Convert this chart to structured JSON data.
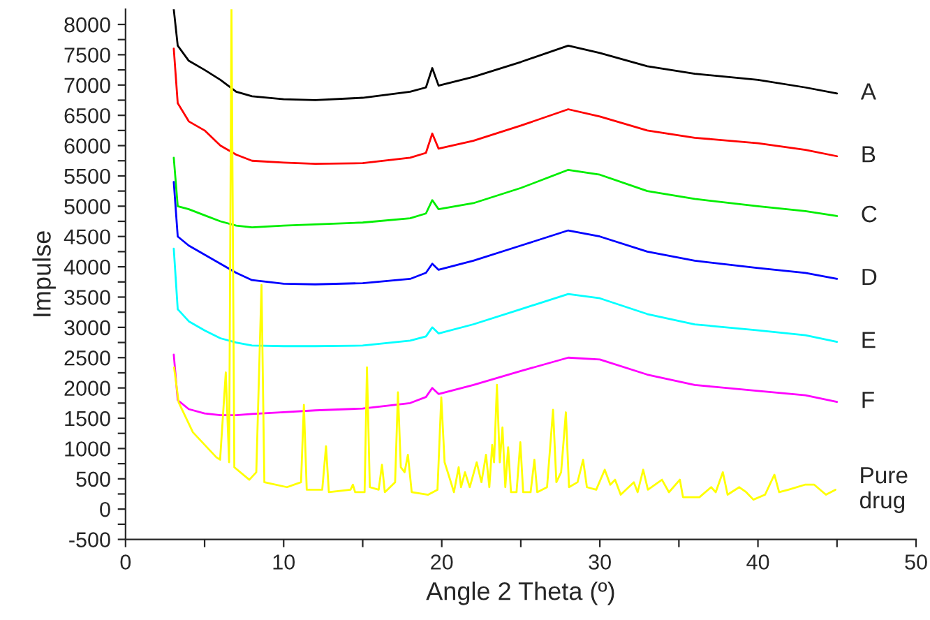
{
  "chart_data": {
    "type": "line",
    "xlabel": "Angle 2 Theta (º)",
    "ylabel": "Impulse",
    "xlim": [
      0,
      50
    ],
    "ylim": [
      -500,
      8250
    ],
    "xticks": [
      0,
      {
        "value": 5,
        "label": null
      },
      10,
      {
        "value": 15,
        "label": null
      },
      20,
      {
        "value": 25,
        "label": null
      },
      30,
      {
        "value": 35,
        "label": null
      },
      40,
      {
        "value": 45,
        "label": null
      },
      50
    ],
    "yticks": [
      -500,
      {
        "value": -250,
        "label": null
      },
      0,
      {
        "value": 250,
        "label": null
      },
      500,
      {
        "value": 750,
        "label": null
      },
      1000,
      {
        "value": 1250,
        "label": null
      },
      1500,
      {
        "value": 1750,
        "label": null
      },
      2000,
      {
        "value": 2250,
        "label": null
      },
      2500,
      {
        "value": 2750,
        "label": null
      },
      3000,
      {
        "value": 3250,
        "label": null
      },
      3500,
      {
        "value": 3750,
        "label": null
      },
      4000,
      {
        "value": 4250,
        "label": null
      },
      4500,
      {
        "value": 4750,
        "label": null
      },
      5000,
      {
        "value": 5250,
        "label": null
      },
      5500,
      {
        "value": 5750,
        "label": null
      },
      6000,
      {
        "value": 6250,
        "label": null
      },
      6500,
      {
        "value": 6750,
        "label": null
      },
      7000,
      {
        "value": 7250,
        "label": null
      },
      7500,
      {
        "value": 7750,
        "label": null
      },
      8000
    ],
    "grid": false,
    "legend": false,
    "marker": "none",
    "line_style": "solid",
    "x": [
      3.05,
      3.3,
      4,
      5,
      6,
      7,
      8,
      10,
      12,
      15,
      18,
      19,
      19.4,
      19.8,
      22,
      25,
      28,
      30,
      33,
      36,
      40,
      43,
      45
    ],
    "series": [
      {
        "name": "A",
        "color": "#000000",
        "values": [
          8250,
          7650,
          7400,
          7250,
          7086,
          6890,
          6815,
          6765,
          6750,
          6790,
          6890,
          6960,
          7280,
          6990,
          7135,
          7380,
          7650,
          7530,
          7310,
          7185,
          7086,
          6960,
          6860
        ]
      },
      {
        "name": "B",
        "color": "#ff0000",
        "values": [
          7600,
          6700,
          6400,
          6250,
          6000,
          5850,
          5750,
          5720,
          5700,
          5710,
          5800,
          5880,
          6200,
          5950,
          6080,
          6330,
          6600,
          6480,
          6250,
          6130,
          6040,
          5930,
          5825
        ]
      },
      {
        "name": "C",
        "color": "#00ee00",
        "values": [
          5800,
          5000,
          4950,
          4850,
          4750,
          4680,
          4650,
          4680,
          4700,
          4730,
          4800,
          4880,
          5100,
          4950,
          5050,
          5300,
          5600,
          5520,
          5250,
          5120,
          5000,
          4920,
          4837
        ]
      },
      {
        "name": "D",
        "color": "#0000ff",
        "values": [
          5400,
          4500,
          4350,
          4200,
          4050,
          3900,
          3780,
          3720,
          3710,
          3730,
          3800,
          3900,
          4050,
          3950,
          4100,
          4350,
          4600,
          4500,
          4250,
          4100,
          3980,
          3900,
          3800
        ]
      },
      {
        "name": "E",
        "color": "#00ffff",
        "values": [
          4300,
          3300,
          3100,
          2950,
          2820,
          2750,
          2700,
          2690,
          2690,
          2700,
          2780,
          2850,
          3000,
          2900,
          3050,
          3300,
          3550,
          3480,
          3220,
          3050,
          2950,
          2870,
          2760
        ]
      },
      {
        "name": "F",
        "color": "#ff00ff",
        "values": [
          2550,
          1800,
          1650,
          1580,
          1550,
          1550,
          1570,
          1600,
          1630,
          1660,
          1750,
          1850,
          2000,
          1900,
          2050,
          2280,
          2500,
          2470,
          2220,
          2050,
          1950,
          1880,
          1770
        ]
      },
      {
        "name": "Pure\ndrug",
        "color": "#ffff00",
        "x": [
          3.07,
          3.36,
          4.26,
          5.74,
          5.98,
          6.34,
          6.55,
          6.7,
          6.88,
          7.83,
          8.27,
          8.6,
          8.78,
          10.21,
          11.1,
          11.28,
          11.46,
          12.44,
          12.68,
          12.86,
          14.23,
          14.38,
          14.52,
          15.12,
          15.27,
          15.45,
          16.01,
          16.22,
          16.4,
          17.05,
          17.23,
          17.41,
          17.65,
          17.86,
          18.1,
          19.14,
          19.73,
          19.97,
          20.18,
          20.48,
          20.77,
          21.07,
          21.22,
          21.47,
          21.77,
          22.21,
          22.51,
          22.8,
          23.01,
          23.19,
          23.31,
          23.49,
          23.67,
          23.84,
          24.02,
          24.2,
          24.38,
          24.73,
          24.97,
          25.15,
          25.62,
          25.86,
          26.04,
          26.66,
          27.04,
          27.25,
          27.55,
          27.85,
          28.05,
          28.59,
          28.94,
          29.18,
          29.77,
          30.31,
          30.66,
          30.96,
          31.32,
          32.15,
          32.39,
          32.74,
          33.04,
          33.93,
          34.37,
          35.06,
          35.26,
          36.3,
          37.04,
          37.33,
          37.78,
          38.08,
          38.82,
          39.26,
          39.71,
          40.45,
          41.04,
          41.34,
          41.93,
          42.97,
          43.56,
          44.3,
          44.9
        ],
        "values": [
          2339,
          1762,
          1268,
          856,
          815,
          2257,
          774,
          8250,
          691,
          485,
          609,
          3699,
          444,
          362,
          444,
          1721,
          320,
          320,
          1037,
          279,
          320,
          403,
          279,
          279,
          2339,
          362,
          320,
          732,
          279,
          444,
          1927,
          691,
          609,
          897,
          279,
          238,
          320,
          1845,
          774,
          526,
          279,
          691,
          362,
          609,
          362,
          773,
          444,
          897,
          362,
          1062,
          773,
          2051,
          773,
          1350,
          362,
          1021,
          279,
          279,
          1103,
          279,
          279,
          815,
          279,
          362,
          1639,
          444,
          609,
          1598,
          362,
          444,
          815,
          362,
          320,
          650,
          403,
          485,
          238,
          444,
          279,
          650,
          320,
          485,
          279,
          485,
          197,
          197,
          362,
          279,
          609,
          238,
          362,
          279,
          156,
          238,
          568,
          279,
          320,
          403,
          403,
          238,
          320
        ]
      }
    ]
  }
}
